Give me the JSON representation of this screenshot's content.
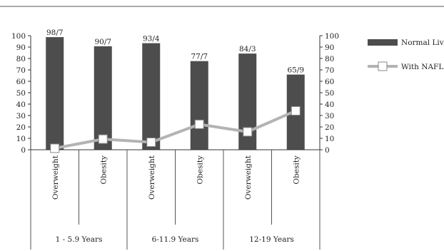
{
  "chart_data": {
    "type": "bar",
    "title": "",
    "xlabel": "",
    "ylabel": "",
    "ylim": [
      0,
      100
    ],
    "y2lim": [
      0,
      100
    ],
    "yticks": [
      0,
      10,
      20,
      30,
      40,
      50,
      60,
      70,
      80,
      90,
      100
    ],
    "categories": [
      "Overweight",
      "Obesity",
      "Overweight",
      "Obesity",
      "Overweight",
      "Obesity"
    ],
    "groups": [
      "1 - 5.9 Years",
      "6-11.9 Years",
      "12-19 Years"
    ],
    "series": [
      {
        "name": "Normal Live",
        "type": "bar",
        "color": "#4d4d4d",
        "values": [
          98.7,
          90.7,
          93.4,
          77.7,
          84.3,
          65.9
        ],
        "labels": [
          "98/7",
          "90/7",
          "93/4",
          "77/7",
          "84/3",
          "65/9"
        ]
      },
      {
        "name": "With NAFLD",
        "type": "line",
        "color": "#b3b3b3",
        "values": [
          1.3,
          9.3,
          6.6,
          22.3,
          15.7,
          34.1
        ]
      }
    ],
    "legend": "right",
    "grid": false
  }
}
